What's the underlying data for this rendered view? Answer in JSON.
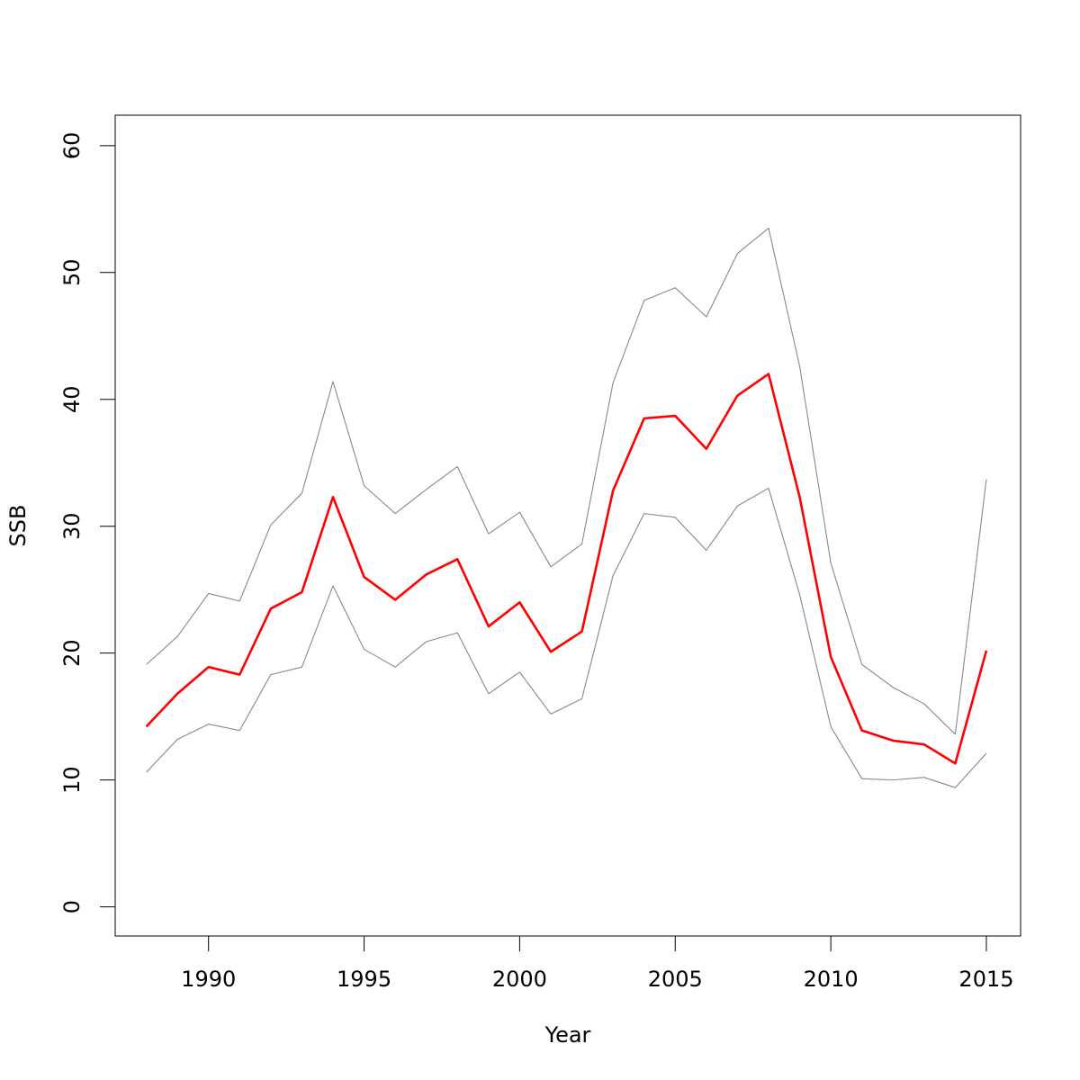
{
  "chart_data": {
    "type": "line",
    "title": "",
    "xlabel": "Year",
    "ylabel": "SSB",
    "xlim": [
      1987,
      2016.1
    ],
    "ylim": [
      -2.3,
      62.4
    ],
    "x_ticks": [
      1990,
      1995,
      2000,
      2005,
      2010,
      2015
    ],
    "x_tick_labels": [
      "1990",
      "1995",
      "2000",
      "2005",
      "2010",
      "2015"
    ],
    "y_ticks": [
      0,
      10,
      20,
      30,
      40,
      50,
      60
    ],
    "y_tick_labels": [
      "0",
      "10",
      "20",
      "30",
      "40",
      "50",
      "60"
    ],
    "grid": false,
    "x": [
      1988,
      1989,
      1990,
      1991,
      1992,
      1993,
      1994,
      1995,
      1996,
      1997,
      1998,
      1999,
      2000,
      2001,
      2002,
      2003,
      2004,
      2005,
      2006,
      2007,
      2008,
      2009,
      2010,
      2011,
      2012,
      2013,
      2014,
      2015
    ],
    "series": [
      {
        "role": "estimate",
        "color": "#ff0000",
        "values": [
          14.2,
          16.8,
          18.9,
          18.3,
          23.5,
          24.8,
          32.3,
          26.0,
          24.2,
          26.2,
          27.4,
          22.1,
          24.0,
          20.1,
          21.7,
          32.8,
          38.5,
          38.7,
          36.1,
          40.3,
          42.0,
          32.3,
          19.7,
          13.9,
          13.1,
          12.8,
          11.3,
          20.2
        ]
      },
      {
        "role": "upper",
        "color": "#888888",
        "values": [
          19.1,
          21.3,
          24.7,
          24.1,
          30.1,
          32.6,
          41.4,
          33.2,
          31.0,
          32.9,
          34.7,
          29.4,
          31.1,
          26.8,
          28.6,
          41.3,
          47.8,
          48.8,
          46.5,
          51.5,
          53.5,
          42.6,
          27.1,
          19.1,
          17.3,
          16.0,
          13.6,
          33.7
        ]
      },
      {
        "role": "lower",
        "color": "#888888",
        "values": [
          10.6,
          13.2,
          14.4,
          13.9,
          18.3,
          18.9,
          25.3,
          20.3,
          18.9,
          20.9,
          21.6,
          16.8,
          18.5,
          15.2,
          16.4,
          26.1,
          31.0,
          30.7,
          28.1,
          31.6,
          33.0,
          24.6,
          14.2,
          10.1,
          10.0,
          10.2,
          9.4,
          12.1
        ]
      }
    ]
  }
}
